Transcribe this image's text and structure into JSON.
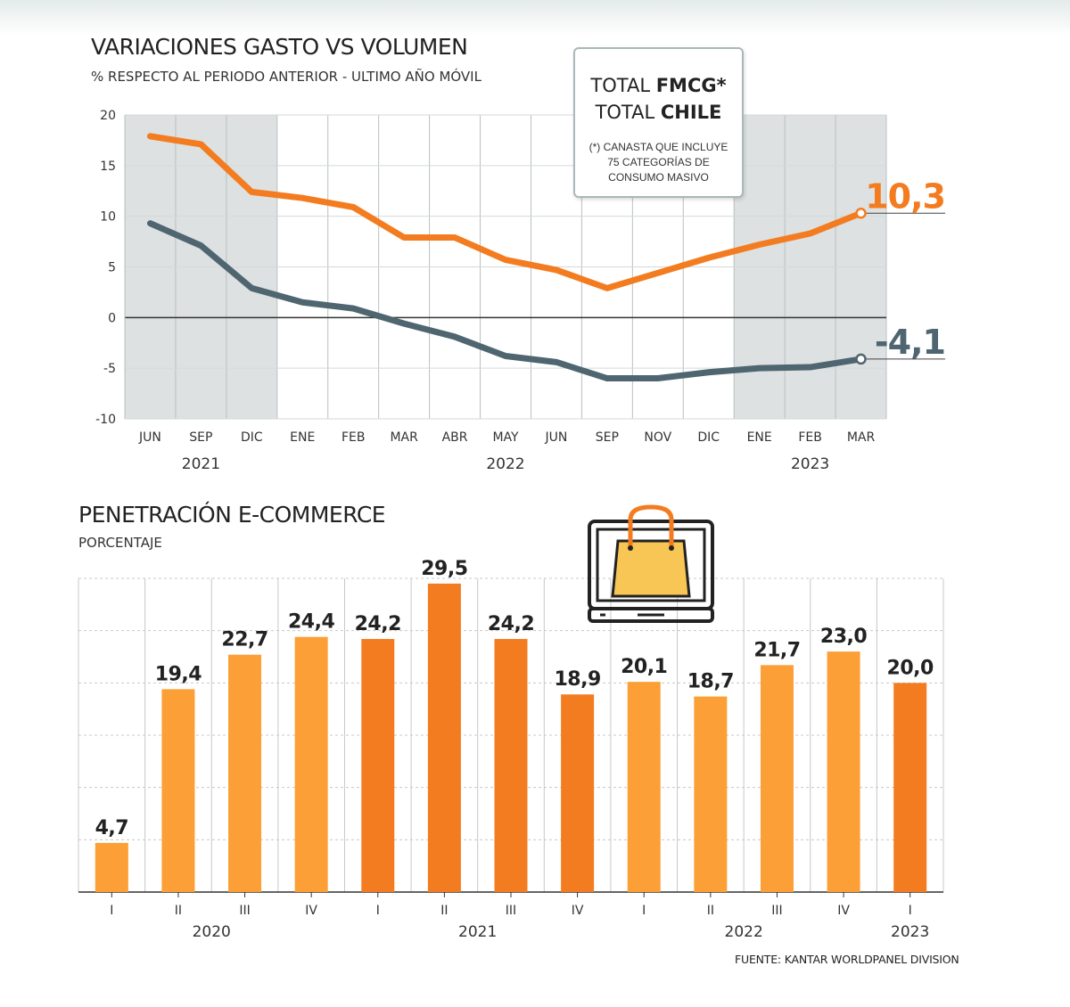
{
  "chart_data": [
    {
      "type": "line",
      "title": "VARIACIONES GASTO  VS VOLUMEN",
      "subtitle": "% RESPECTO AL PERIODO ANTERIOR - ULTIMO AÑO MÓVIL",
      "categories": [
        "JUN",
        "SEP",
        "DIC",
        "ENE",
        "FEB",
        "MAR",
        "ABR",
        "MAY",
        "JUN",
        "SEP",
        "NOV",
        "DIC",
        "ENE",
        "FEB",
        "MAR"
      ],
      "year_labels": [
        "2021",
        "2022",
        "2023"
      ],
      "ylim": [
        -10,
        20
      ],
      "yticks": [
        20,
        15,
        10,
        5,
        0,
        -5,
        -10
      ],
      "grid": true,
      "series": [
        {
          "color": "#f47c20",
          "values": [
            17.9,
            17.1,
            12.4,
            11.8,
            10.9,
            7.9,
            7.9,
            5.7,
            4.7,
            2.9,
            4.4,
            5.9,
            7.2,
            8.3,
            10.3
          ],
          "end_label": "10,3"
        },
        {
          "color": "#4f6670",
          "values": [
            9.3,
            7.1,
            2.9,
            1.5,
            0.9,
            -0.6,
            -1.9,
            -3.8,
            -4.4,
            -6.0,
            -6.0,
            -5.4,
            -5.0,
            -4.9,
            -4.1
          ],
          "end_label": "-4,1"
        }
      ]
    },
    {
      "type": "bar",
      "title": "PENETRACIÓN E-COMMERCE",
      "subtitle": "PORCENTAJE",
      "categories": [
        "I",
        "II",
        "III",
        "IV",
        "I",
        "II",
        "III",
        "IV",
        "I",
        "II",
        "III",
        "IV",
        "I"
      ],
      "year_labels": [
        "2020",
        "2021",
        "2022",
        "2023"
      ],
      "values": [
        4.7,
        19.4,
        22.7,
        24.4,
        24.2,
        29.5,
        24.2,
        18.9,
        20.1,
        18.7,
        21.7,
        23.0,
        20.0
      ],
      "value_labels": [
        "4,7",
        "19,4",
        "22,7",
        "24,4",
        "24,2",
        "29,5",
        "24,2",
        "18,9",
        "20,1",
        "18,7",
        "21,7",
        "23,0",
        "20,0"
      ],
      "colors_by_year": {
        "2020": "#fb9f36",
        "2021": "#f47c20",
        "2022": "#fb9f36",
        "2023": "#f47c20"
      },
      "ylim": [
        0,
        30
      ]
    }
  ],
  "legend": {
    "line1_prefix": "TOTAL ",
    "line1_bold": "FMCG*",
    "line2_prefix": "TOTAL ",
    "line2_bold": "CHILE",
    "note": "(*) CANASTA QUE INCLUYE 75 CATEGORÍAS DE CONSUMO MASIVO"
  },
  "icon": "shopping-bag-laptop-icon",
  "source": "FUENTE: KANTAR WORLDPANEL DIVISION"
}
